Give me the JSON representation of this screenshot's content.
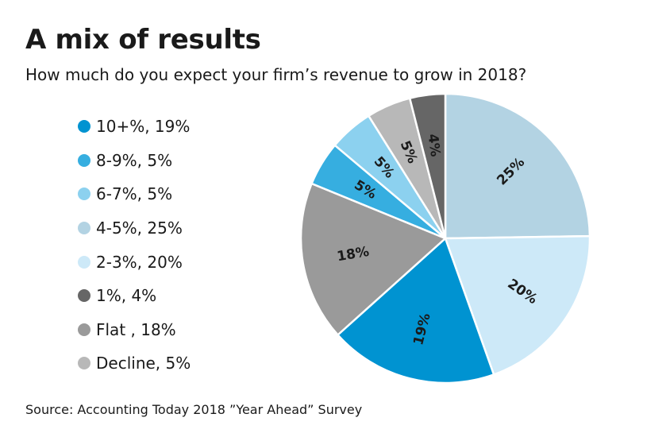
{
  "chart_data": {
    "type": "pie",
    "title": "A mix of results",
    "subtitle": "How much do you expect your firm’s revenue to grow in 2018?",
    "source": "Source: Accounting Today 2018 ”Year Ahead” Survey",
    "legend_placement": "left",
    "slices": [
      {
        "name": "4-5%",
        "value": 25,
        "label": "25%",
        "legend": "4-5%, 25%",
        "color": "#b3d3e3"
      },
      {
        "name": "2-3%",
        "value": 20,
        "label": "20%",
        "legend": "2-3%, 20%",
        "color": "#cde9f8"
      },
      {
        "name": "10+%",
        "value": 19,
        "label": "19%",
        "legend": "10+%, 19%",
        "color": "#0093d1"
      },
      {
        "name": "Flat",
        "value": 18,
        "label": "18%",
        "legend": "Flat , 18%",
        "color": "#9a9a9a"
      },
      {
        "name": "8-9%",
        "value": 5,
        "label": "5%",
        "legend": "8-9%, 5%",
        "color": "#36aee0"
      },
      {
        "name": "6-7%",
        "value": 5,
        "label": "5%",
        "legend": "6-7%, 5%",
        "color": "#8cd1ef"
      },
      {
        "name": "Decline",
        "value": 5,
        "label": "5%",
        "legend": "Decline, 5%",
        "color": "#b8b8b8"
      },
      {
        "name": "1%",
        "value": 4,
        "label": "4%",
        "legend": "1%, 4%",
        "color": "#666666"
      }
    ],
    "legend_order": [
      "10+%",
      "8-9%",
      "6-7%",
      "4-5%",
      "2-3%",
      "1%",
      "Flat",
      "Decline"
    ]
  }
}
